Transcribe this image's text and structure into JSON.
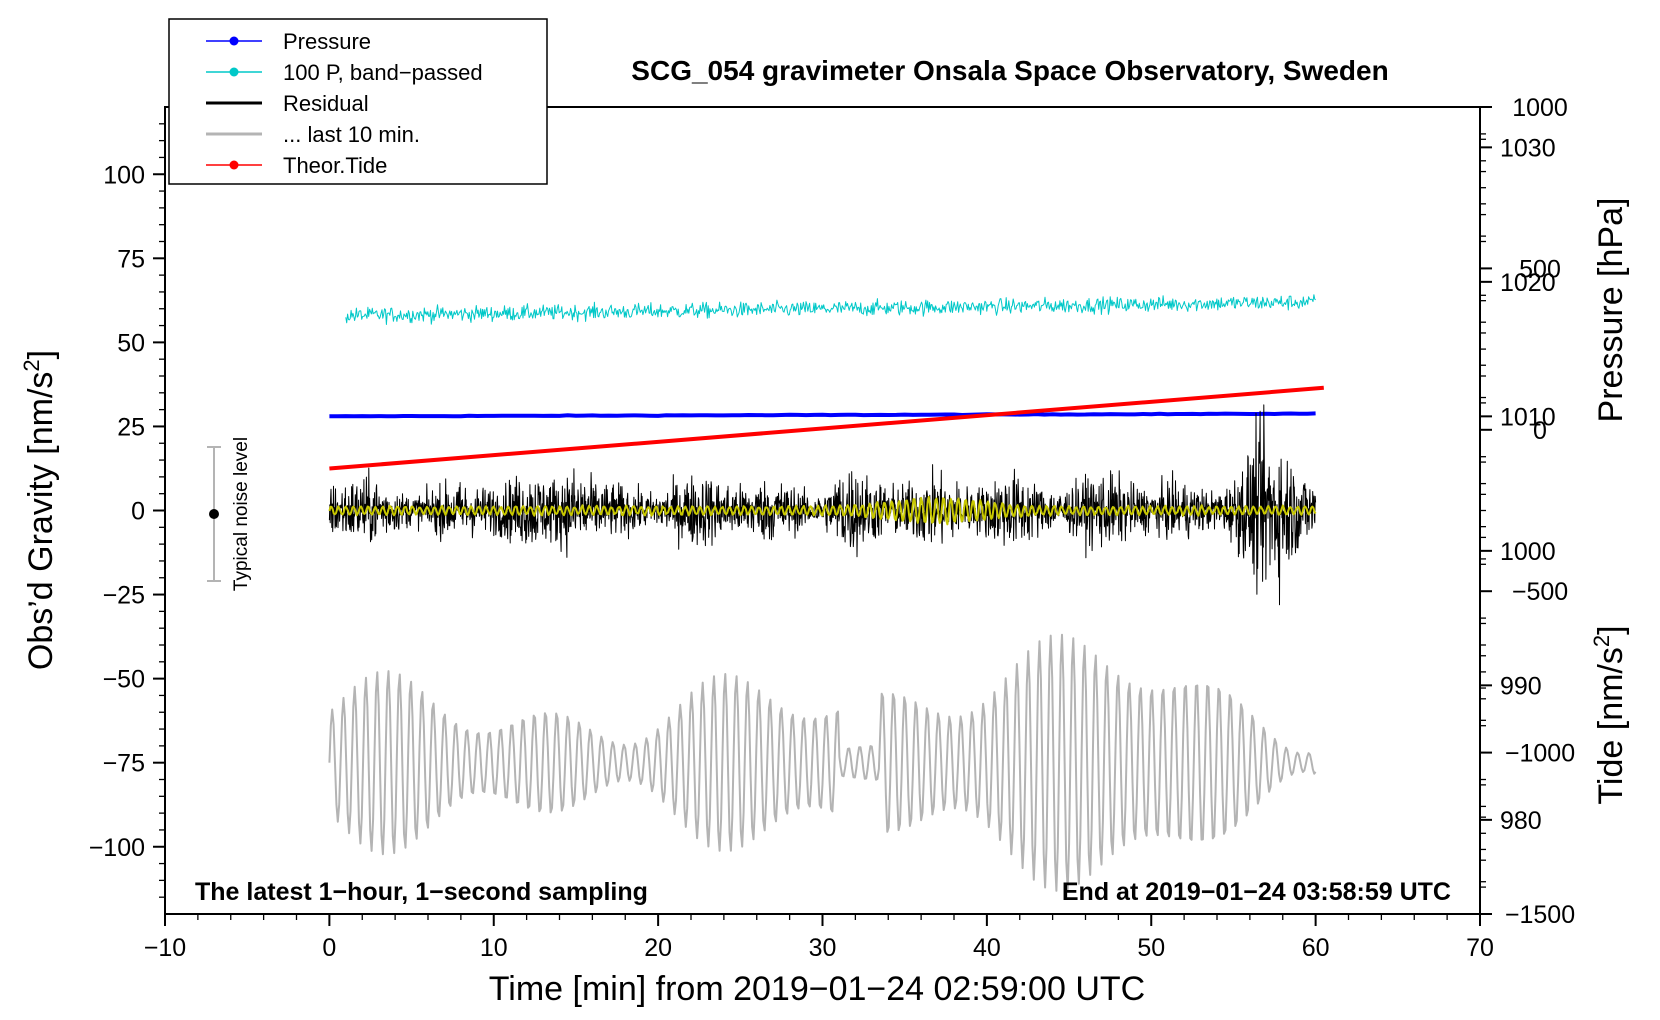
{
  "chart_data": {
    "type": "line",
    "title": "SCG_054 gravimeter Onsala Space Observatory, Sweden",
    "xlabel": "Time [min] from 2019−01−24 02:59:00 UTC",
    "ylabel_left": "Obs’d Gravity [nm/s",
    "ylabel_left_sup": "2",
    "ylabel_left_end": "]",
    "ylabel_right_pressure": "Pressure [hPa]",
    "ylabel_right_tide": "Tide [nm/s",
    "ylabel_right_tide_sup": "2",
    "ylabel_right_tide_end": "]",
    "xlim": [
      -10,
      70
    ],
    "ylim_left": [
      -120,
      120
    ],
    "pressure_axis_range": [
      973,
      1033
    ],
    "tide_axis_range": [
      -1500,
      1000
    ],
    "x_ticks": [
      -10,
      0,
      10,
      20,
      30,
      40,
      50,
      60,
      70
    ],
    "x_tick_labels": [
      "−10",
      "0",
      "10",
      "20",
      "30",
      "40",
      "50",
      "60",
      "70"
    ],
    "y_left_ticks": [
      100,
      75,
      50,
      25,
      0,
      -25,
      -50,
      -75,
      -100
    ],
    "y_left_tick_labels": [
      "100",
      "75",
      "50",
      "25",
      "0",
      "−25",
      "−50",
      "−75",
      "−100"
    ],
    "y_pressure_ticks": [
      1030,
      1020,
      1010,
      1000,
      990,
      980
    ],
    "y_pressure_tick_labels": [
      "1030",
      "1020",
      "1010",
      "1000",
      "990",
      "980"
    ],
    "y_tide_ticks": [
      1000,
      500,
      0,
      -500,
      -1000,
      -1500
    ],
    "y_tide_tick_labels": [
      "1000",
      "500",
      "0",
      "−500",
      "−1000",
      "−1500"
    ],
    "legend": {
      "position": "top-left",
      "entries": [
        {
          "label": "Pressure",
          "color": "#0000ff",
          "marker": true
        },
        {
          "label": "100 P, band−passed",
          "color": "#00c8c8",
          "marker": true
        },
        {
          "label": "Residual",
          "color": "#000000",
          "marker": false
        },
        {
          "label": "... last 10 min.",
          "color": "#b4b4b4",
          "marker": false
        },
        {
          "label": "Theor.Tide",
          "color": "#ff0000",
          "marker": true
        }
      ]
    },
    "series": [
      {
        "name": "Pressure",
        "axis": "pressure",
        "color": "#0000ff",
        "x": [
          0,
          60
        ],
        "values": [
          1010.0,
          1010.2
        ]
      },
      {
        "name": "100 P, band-passed",
        "axis": "left",
        "color": "#00c8c8",
        "x": [
          1,
          60
        ],
        "values_mean": [
          58,
          62
        ],
        "noise_amplitude": 3
      },
      {
        "name": "Residual",
        "axis": "left",
        "color": "#000000",
        "x": [
          0,
          60
        ],
        "values_mean": [
          0,
          0
        ],
        "noise_amplitude": 15
      },
      {
        "name": "Residual (smoothed)",
        "axis": "left",
        "color": "#c8c800",
        "x": [
          0,
          60
        ],
        "values_mean": [
          0,
          0
        ],
        "noise_amplitude": 1.5
      },
      {
        "name": "... last 10 min.",
        "axis": "left",
        "color": "#b4b4b4",
        "x": [
          0,
          60
        ],
        "values_mean": [
          -75,
          -75
        ],
        "oscillation_amplitude": 25
      },
      {
        "name": "Theor.Tide",
        "axis": "tide",
        "color": "#ff0000",
        "x": [
          0,
          60.5
        ],
        "values": [
          -120,
          130
        ]
      }
    ],
    "noise_level": {
      "x": -7,
      "y_center": 0,
      "y_half_range": 20,
      "label": "Typical noise level"
    },
    "annotations": {
      "bottom_left": "The latest 1−hour, 1−second sampling",
      "bottom_right": "End at 2019−01−24 03:58:59 UTC"
    }
  }
}
